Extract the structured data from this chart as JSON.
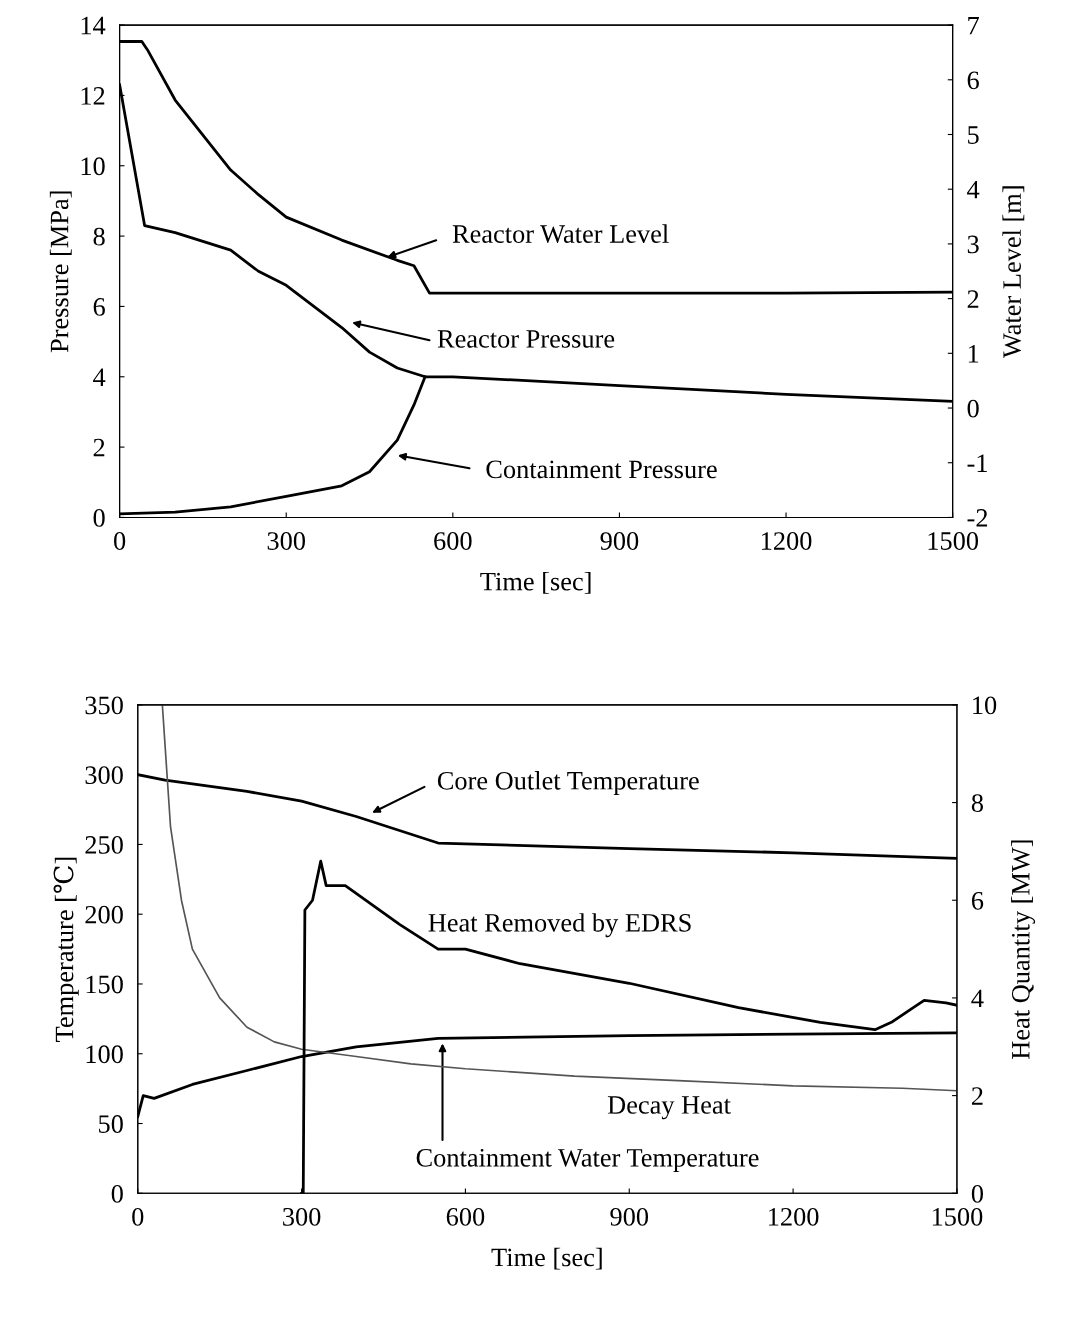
{
  "chart_data": [
    {
      "type": "line",
      "xlabel": "Time [sec]",
      "ylabel": "Pressure [MPa]",
      "y2label": "Water Level [m]",
      "xlim": [
        0,
        1500
      ],
      "xticks": [
        0,
        300,
        600,
        900,
        1200,
        1500
      ],
      "ylim": [
        0,
        14
      ],
      "yticks": [
        0,
        2,
        4,
        6,
        8,
        10,
        12,
        14
      ],
      "y2lim": [
        -2,
        7
      ],
      "y2ticks": [
        -2,
        -1,
        0,
        1,
        2,
        3,
        4,
        5,
        6,
        7
      ],
      "grid": false,
      "legend": false,
      "marker": "none",
      "line_style": "solid",
      "series": [
        {
          "color": "#000000",
          "axis": "y2",
          "x": [
            0,
            40,
            50,
            100,
            150,
            200,
            250,
            300,
            400,
            500,
            530,
            558,
            600,
            900,
            1200,
            1500
          ],
          "values": [
            6.7,
            6.7,
            6.55,
            5.63,
            4.99,
            4.35,
            3.9,
            3.49,
            3.07,
            2.7,
            2.6,
            2.1,
            2.1,
            2.1,
            2.1,
            2.12
          ]
        },
        {
          "color": "#000000",
          "x": [
            0,
            45,
            100,
            200,
            250,
            300,
            400,
            450,
            500,
            550,
            600,
            900,
            1200,
            1500
          ],
          "values": [
            12.3,
            8.3,
            8.1,
            7.6,
            7.0,
            6.6,
            5.4,
            4.7,
            4.25,
            4.0,
            4.0,
            3.75,
            3.5,
            3.3
          ]
        },
        {
          "color": "#000000",
          "x": [
            0,
            100,
            200,
            300,
            400,
            450,
            500,
            530,
            550
          ],
          "values": [
            0.1,
            0.15,
            0.3,
            0.6,
            0.9,
            1.3,
            2.2,
            3.2,
            4.0
          ]
        }
      ],
      "annotations": [
        {
          "text": "Reactor Water Level",
          "x": 482,
          "y": 7.4
        },
        "Reactor Pressure",
        "Containment Pressure"
      ]
    },
    {
      "type": "line",
      "xlabel": "Time [sec]",
      "ylabel": "Temperature [℃]",
      "y2label": "Heat Quantity [MW]",
      "xlim": [
        0,
        1500
      ],
      "xticks": [
        0,
        300,
        600,
        900,
        1200,
        1500
      ],
      "ylim": [
        0,
        350
      ],
      "yticks": [
        0,
        50,
        100,
        150,
        200,
        250,
        300,
        350
      ],
      "y2lim": [
        0,
        10
      ],
      "y2ticks": [
        0,
        2,
        4,
        6,
        8,
        10
      ],
      "grid": false,
      "legend": false,
      "marker": "none",
      "line_style": "solid",
      "series": [
        {
          "color": "#000000",
          "x": [
            0,
            50,
            200,
            300,
            400,
            550,
            900,
            1200,
            1500
          ],
          "values": [
            300,
            296,
            288,
            281,
            270,
            251,
            247,
            244,
            240
          ]
        },
        {
          "color": "#000000",
          "x": [
            0,
            10,
            30,
            100,
            200,
            300,
            400,
            550,
            900,
            1200,
            1500
          ],
          "values": [
            55,
            70,
            68,
            78,
            88,
            98,
            105,
            111,
            113,
            114,
            115
          ]
        },
        {
          "color": "#555555",
          "axis": "y2",
          "x": [
            45,
            60,
            80,
            100,
            150,
            200,
            250,
            300,
            400,
            500,
            600,
            800,
            1000,
            1200,
            1400,
            1500
          ],
          "values": [
            10,
            7.5,
            6,
            5.0,
            4.0,
            3.4,
            3.1,
            2.95,
            2.8,
            2.65,
            2.55,
            2.4,
            2.3,
            2.2,
            2.15,
            2.1
          ]
        },
        {
          "color": "#000000",
          "axis": "y2",
          "x": [
            300,
            303,
            306,
            320,
            335,
            345,
            380,
            430,
            480,
            550,
            600,
            700,
            900,
            1100,
            1250,
            1350,
            1380,
            1420,
            1440,
            1480,
            1500
          ],
          "values": [
            0,
            0,
            5.8,
            6.0,
            6.8,
            6.3,
            6.3,
            5.9,
            5.5,
            5.0,
            5.0,
            4.7,
            4.3,
            3.8,
            3.5,
            3.35,
            3.5,
            3.8,
            3.95,
            3.9,
            3.85
          ]
        }
      ],
      "annotations": [
        "Core Outlet Temperature",
        "Heat Removed by EDRS",
        "Decay Heat",
        "Containment Water Temperature"
      ]
    }
  ]
}
